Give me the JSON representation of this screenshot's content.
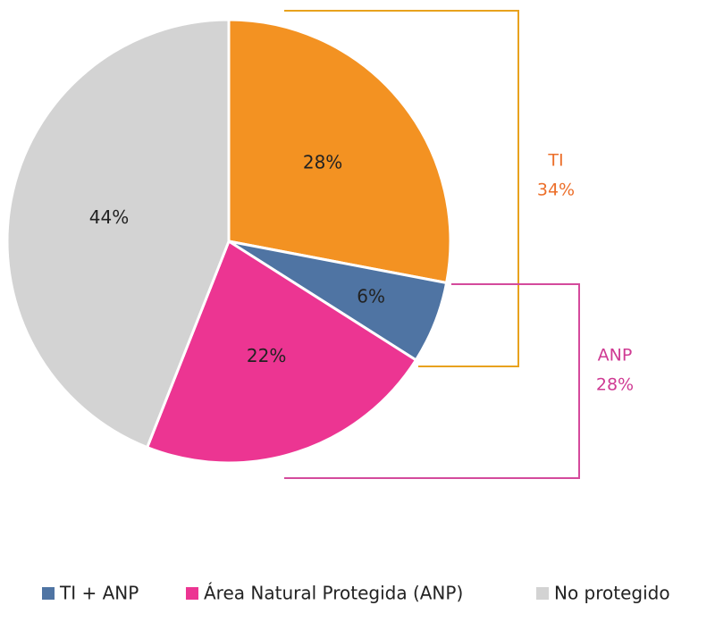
{
  "chart_data": {
    "type": "pie",
    "categories": [
      ")",
      "TI + ANP",
      "Área Natural Protegida (ANP)",
      "No protegido"
    ],
    "values": [
      28,
      6,
      22,
      44
    ],
    "value_labels": [
      "28%",
      "6%",
      "22%",
      "44%"
    ],
    "colors": [
      "#f39222",
      "#4f74a3",
      "#ec3592",
      "#d3d3d3"
    ],
    "annotations": [
      {
        "label": "TI",
        "value": 34,
        "value_label": "34%",
        "color": "#ec6f2a"
      },
      {
        "label": "ANP",
        "value": 28,
        "value_label": "28%",
        "color": "#cf3a93"
      }
    ]
  }
}
